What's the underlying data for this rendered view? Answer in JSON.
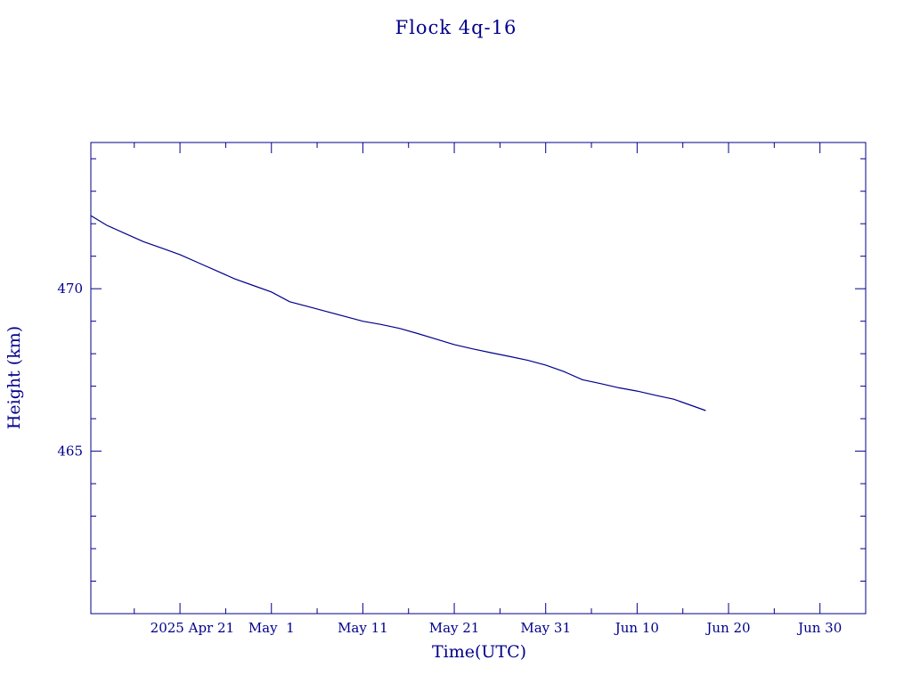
{
  "chart_data": {
    "type": "line",
    "title": "Flock 4q-16",
    "xlabel": "Time(UTC)",
    "ylabel": "Height (km)",
    "x_tick_labels": [
      "2025 Apr 21",
      "May  1",
      "May 11",
      "May 21",
      "May 31",
      "Jun 10",
      "Jun 20",
      "Jun 30"
    ],
    "x_tick_dates": [
      "2025-04-21",
      "2025-05-01",
      "2025-05-11",
      "2025-05-21",
      "2025-05-31",
      "2025-06-10",
      "2025-06-20",
      "2025-06-30"
    ],
    "y_tick_labels": [
      "465",
      "470"
    ],
    "y_tick_values": [
      465,
      470
    ],
    "xlim": [
      "2025-04-11T06:00",
      "2025-07-05T00:00"
    ],
    "ylim": [
      460.0,
      474.5
    ],
    "grid": false,
    "color": "#00008b",
    "series": [
      {
        "x": [
          "2025-04-11T06:00",
          "2025-04-13",
          "2025-04-15",
          "2025-04-17",
          "2025-04-19",
          "2025-04-21",
          "2025-04-23",
          "2025-04-25",
          "2025-04-27",
          "2025-04-29",
          "2025-05-01",
          "2025-05-03",
          "2025-05-05",
          "2025-05-07",
          "2025-05-09",
          "2025-05-11",
          "2025-05-13",
          "2025-05-15",
          "2025-05-17",
          "2025-05-19",
          "2025-05-21",
          "2025-05-23",
          "2025-05-25",
          "2025-05-27",
          "2025-05-29",
          "2025-05-31",
          "2025-06-02",
          "2025-06-04",
          "2025-06-06",
          "2025-06-08",
          "2025-06-10",
          "2025-06-12",
          "2025-06-14",
          "2025-06-16",
          "2025-06-17T12:00"
        ],
        "y": [
          472.25,
          471.95,
          471.7,
          471.45,
          471.25,
          471.05,
          470.8,
          470.55,
          470.3,
          470.1,
          469.9,
          469.6,
          469.45,
          469.3,
          469.15,
          469.0,
          468.9,
          468.78,
          468.62,
          468.45,
          468.28,
          468.15,
          468.03,
          467.92,
          467.8,
          467.65,
          467.45,
          467.2,
          467.08,
          466.95,
          466.85,
          466.72,
          466.6,
          466.4,
          466.25
        ]
      }
    ]
  }
}
